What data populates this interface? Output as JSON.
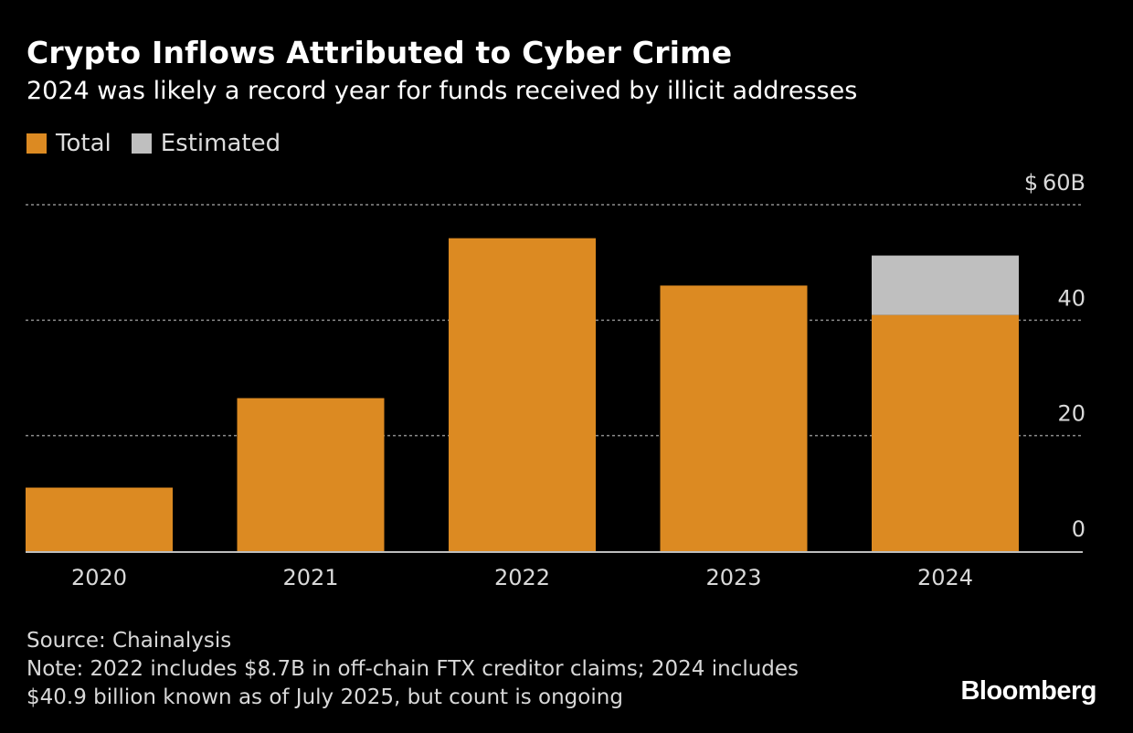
{
  "header": {
    "title": "Crypto Inflows Attributed to Cyber Crime",
    "subtitle": "2024 was likely a record year for funds received by illicit addresses"
  },
  "colors": {
    "background": "#000000",
    "total": "#DC8A22",
    "estimated": "#BFBFBF",
    "gridline": "#8C8C8C",
    "axis_text": "#D9D9D9"
  },
  "chart_data": {
    "type": "bar",
    "stacked": true,
    "categories": [
      "2020",
      "2021",
      "2022",
      "2023",
      "2024"
    ],
    "series": [
      {
        "name": "Total",
        "values": [
          11.0,
          26.5,
          54.2,
          46.0,
          40.9
        ]
      },
      {
        "name": "Estimated",
        "values": [
          0,
          0,
          0,
          0,
          10.3
        ]
      }
    ],
    "y_ticks": [
      {
        "value": 0,
        "label": "0"
      },
      {
        "value": 20,
        "label": "20"
      },
      {
        "value": 40,
        "label": "40"
      },
      {
        "value": 60,
        "label": "$ 60B"
      }
    ],
    "ylim": [
      0,
      60
    ],
    "grid": true,
    "y_axis_side": "right",
    "legend_position": "top-left"
  },
  "footer": {
    "source": "Source: Chainalysis",
    "note_line1": "Note: 2022 includes $8.7B in off-chain FTX creditor claims; 2024 includes",
    "note_line2": "$40.9 billion known as of July 2025, but count is ongoing",
    "brand": "Bloomberg"
  }
}
